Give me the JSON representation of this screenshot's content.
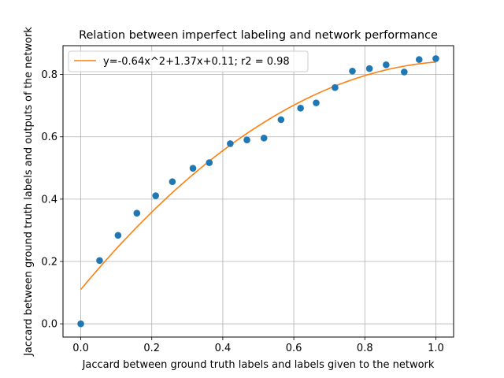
{
  "chart_data": {
    "type": "scatter",
    "title": "Relation between imperfect labeling and network performance",
    "xlabel": "Jaccard between ground truth labels and labels given to the network",
    "ylabel": "Jaccard between ground truth labels and outputs of the network",
    "xlim": [
      -0.05,
      1.05
    ],
    "ylim": [
      -0.0425,
      0.8925
    ],
    "xticks": [
      0.0,
      0.2,
      0.4,
      0.6,
      0.8,
      1.0
    ],
    "xtick_labels": [
      "0.0",
      "0.2",
      "0.4",
      "0.6",
      "0.8",
      "1.0"
    ],
    "yticks": [
      0.0,
      0.2,
      0.4,
      0.6,
      0.8
    ],
    "ytick_labels": [
      "0.0",
      "0.2",
      "0.4",
      "0.6",
      "0.8"
    ],
    "grid": true,
    "legend_position": "top-left",
    "series": [
      {
        "kind": "scatter",
        "color": "#1f77b4",
        "x": [
          0.0,
          0.053,
          0.105,
          0.158,
          0.211,
          0.258,
          0.316,
          0.362,
          0.421,
          0.468,
          0.516,
          0.564,
          0.619,
          0.663,
          0.716,
          0.765,
          0.813,
          0.86,
          0.911,
          0.953,
          1.0
        ],
        "y": [
          0.0,
          0.203,
          0.284,
          0.355,
          0.411,
          0.456,
          0.499,
          0.517,
          0.578,
          0.59,
          0.596,
          0.655,
          0.692,
          0.709,
          0.758,
          0.811,
          0.819,
          0.831,
          0.808,
          0.848,
          0.851
        ]
      },
      {
        "kind": "line",
        "name": "y=-0.64x^2+1.37x+0.11; r2 = 0.98",
        "color": "#ff7f0e",
        "coefficients": {
          "a": -0.64,
          "b": 1.37,
          "c": 0.11
        },
        "x_range": [
          0.0,
          1.0
        ]
      }
    ]
  }
}
